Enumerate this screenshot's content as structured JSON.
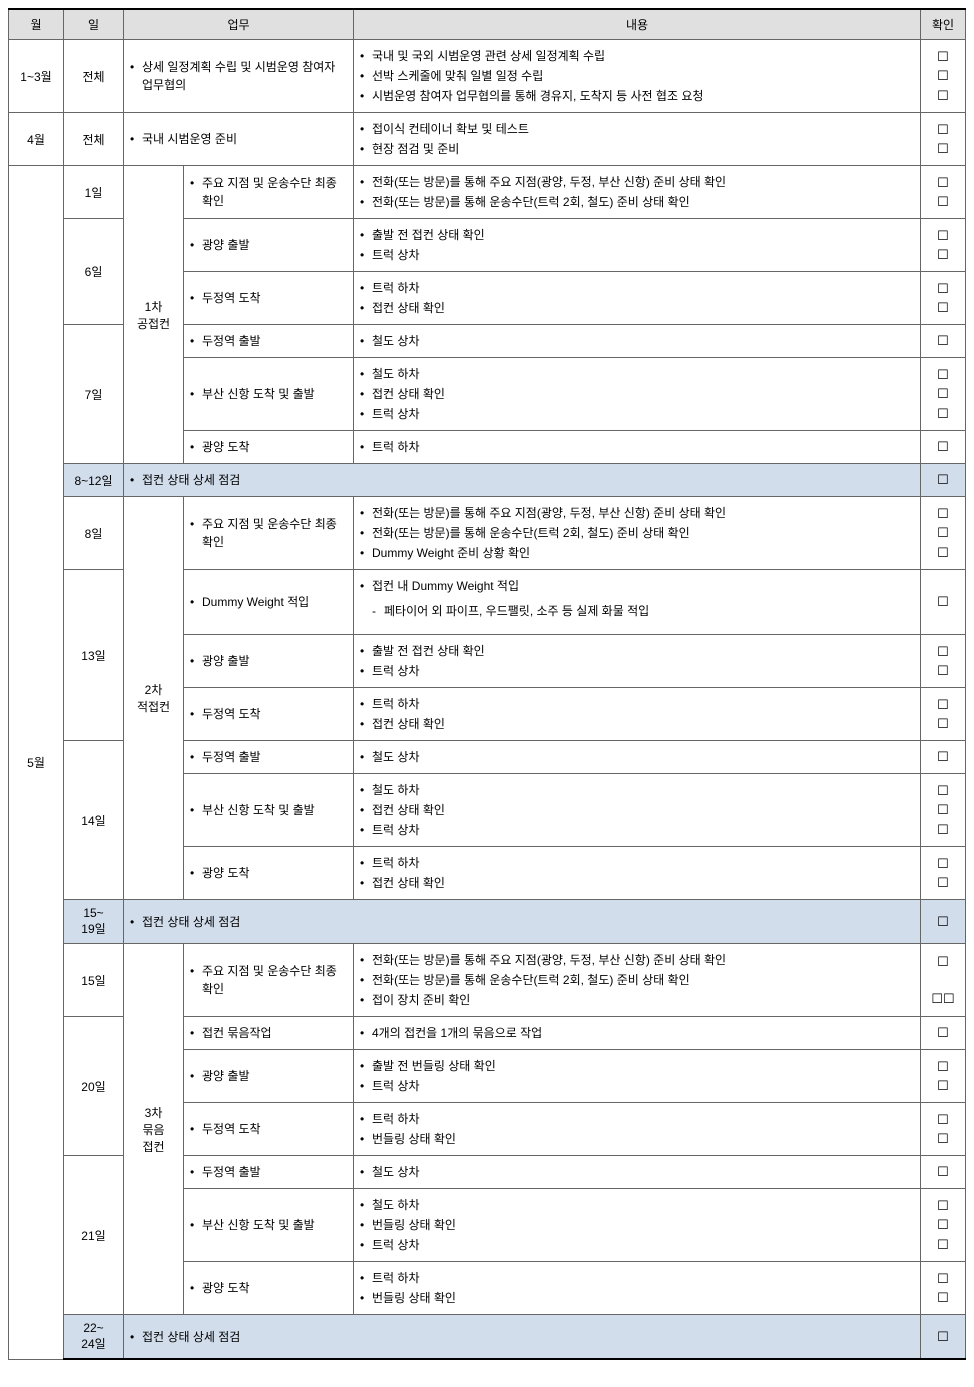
{
  "headers": {
    "month": "월",
    "day": "일",
    "task": "업무",
    "content": "내용",
    "check": "확인"
  },
  "checkbox_char": "☐",
  "rows": [
    {
      "month": "1~3월",
      "month_rowspan": 1,
      "day": "전체",
      "phase": "",
      "phase_colspan": 2,
      "task_items": [
        "상세 일정계획 수립 및 시범운영 참여자 업무협의"
      ],
      "content_items": [
        "국내 및 국외 시범운영 관련 상세 일정계획 수립",
        "선박 스케줄에 맞춰 일별 일정 수립",
        "시범운영 참여자 업무협의를 통해 경유지, 도착지 등 사전 협조 요청"
      ],
      "checks": 3
    },
    {
      "month": "4월",
      "month_rowspan": 1,
      "day": "전체",
      "phase": "",
      "phase_colspan": 2,
      "task_items": [
        "국내 시범운영 준비"
      ],
      "content_items": [
        "접이식 컨테이너 확보 및 테스트",
        "현장 점검 및 준비"
      ],
      "checks": 2
    },
    {
      "month": "5월",
      "month_rowspan": 24,
      "day": "1일",
      "phase": "1차\n공접컨",
      "phase_rowspan": 6,
      "task_items": [
        "주요 지점 및 운송수단 최종 확인"
      ],
      "content_items": [
        "전화(또는 방문)를 통해 주요 지점(광양, 두정, 부산 신항) 준비 상태 확인",
        "전화(또는 방문)를 통해 운송수단(트럭 2회, 철도) 준비 상태 확인"
      ],
      "checks": 2
    },
    {
      "day": "6일",
      "day_rowspan": 2,
      "task_items": [
        "광양 출발"
      ],
      "content_items": [
        "출발 전 접컨 상태 확인",
        "트럭 상차"
      ],
      "checks": 2
    },
    {
      "task_items": [
        "두정역 도착"
      ],
      "content_items": [
        "트럭 하차",
        "접컨 상태 확인"
      ],
      "checks": 2
    },
    {
      "day": "7일",
      "day_rowspan": 3,
      "task_items": [
        "두정역 출발"
      ],
      "content_items": [
        "철도 상차"
      ],
      "checks": 1
    },
    {
      "task_items": [
        "부산 신항 도착 및 출발"
      ],
      "content_items": [
        "철도 하차",
        "접컨 상태 확인",
        "트럭 상차"
      ],
      "checks": 3
    },
    {
      "task_items": [
        "광양 도착"
      ],
      "content_items": [
        "트럭 하차"
      ],
      "checks": 1
    },
    {
      "highlight": true,
      "day": "8~12일",
      "phase": "",
      "phase_colspan": 2,
      "task_items": [
        "접컨 상태 상세 점검"
      ],
      "content_items": [],
      "content_merge": true,
      "checks": 1
    },
    {
      "day": "8일",
      "phase": "2차\n적접컨",
      "phase_rowspan": 7,
      "task_items": [
        "주요 지점 및 운송수단 최종 확인"
      ],
      "content_items": [
        "전화(또는 방문)를 통해 주요 지점(광양, 두정, 부산 신항) 준비 상태 확인",
        "전화(또는 방문)를 통해 운송수단(트럭 2회, 철도) 준비 상태 확인",
        "Dummy Weight 준비 상황 확인"
      ],
      "checks": 3
    },
    {
      "day": "13일",
      "day_rowspan": 3,
      "task_items": [
        "Dummy Weight 적입"
      ],
      "content_items": [
        "접컨 내 Dummy Weight 적입"
      ],
      "content_sub": [
        "페타이어 외 파이프, 우드팰릿, 소주 등 실제 화물 적입"
      ],
      "checks": 1
    },
    {
      "task_items": [
        "광양 출발"
      ],
      "content_items": [
        "출발 전 접컨 상태 확인",
        "트럭 상차"
      ],
      "checks": 2
    },
    {
      "task_items": [
        "두정역 도착"
      ],
      "content_items": [
        "트럭 하차",
        "접컨 상태 확인"
      ],
      "checks": 2
    },
    {
      "day": "14일",
      "day_rowspan": 3,
      "task_items": [
        "두정역 출발"
      ],
      "content_items": [
        "철도 상차"
      ],
      "checks": 1
    },
    {
      "task_items": [
        "부산 신항 도착 및 출발"
      ],
      "content_items": [
        "철도 하차",
        "접컨 상태 확인",
        "트럭 상차"
      ],
      "checks": 3
    },
    {
      "task_items": [
        "광양 도착"
      ],
      "content_items": [
        "트럭 하차",
        "접컨 상태 확인"
      ],
      "checks": 2
    },
    {
      "highlight": true,
      "day": "15~\n19일",
      "phase": "",
      "phase_colspan": 2,
      "task_items": [
        "접컨 상태 상세 점검"
      ],
      "content_items": [],
      "content_merge": true,
      "checks": 1
    },
    {
      "day": "15일",
      "phase": "3차\n묶음\n접컨",
      "phase_rowspan": 7,
      "task_items": [
        "주요 지점 및 운송수단 최종 확인"
      ],
      "content_items": [
        "전화(또는 방문)를 통해 주요 지점(광양, 두정, 부산 신항) 준비 상태 확인",
        "전화(또는 방문)를 통해 운송수단(트럭 2회, 철도) 준비 상태 확인",
        "접이 장치 준비 확인"
      ],
      "checks": 3,
      "checks_layout": "1-2"
    },
    {
      "day": "20일",
      "day_rowspan": 3,
      "task_items": [
        "접컨 묶음작업"
      ],
      "content_items": [
        "4개의 접컨을 1개의 묶음으로 작업"
      ],
      "checks": 1
    },
    {
      "task_items": [
        "광양 출발"
      ],
      "content_items": [
        "출발 전 번들링 상태 확인",
        "트럭 상차"
      ],
      "checks": 2
    },
    {
      "task_items": [
        "두정역 도착"
      ],
      "content_items": [
        "트럭 하차",
        "번들링 상태 확인"
      ],
      "checks": 2
    },
    {
      "day": "21일",
      "day_rowspan": 3,
      "task_items": [
        "두정역 출발"
      ],
      "content_items": [
        "철도 상차"
      ],
      "checks": 1
    },
    {
      "task_items": [
        "부산 신항 도착 및 출발"
      ],
      "content_items": [
        "철도 하차",
        "번들링 상태 확인",
        "트럭 상차"
      ],
      "checks": 3
    },
    {
      "task_items": [
        "광양 도착"
      ],
      "content_items": [
        "트럭 하차",
        "번들링 상태 확인"
      ],
      "checks": 2
    },
    {
      "highlight": true,
      "day": "22~\n24일",
      "phase": "",
      "phase_colspan": 2,
      "task_items": [
        "접컨 상태 상세 점검"
      ],
      "content_items": [],
      "content_merge": true,
      "checks": 1
    }
  ]
}
